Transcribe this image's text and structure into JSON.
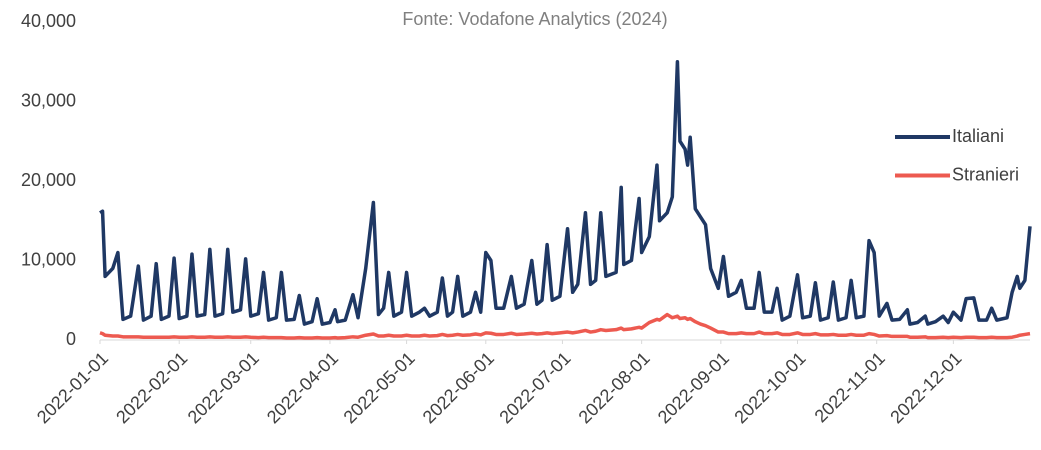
{
  "chart_data": {
    "type": "line",
    "title": "Fonte: Vodafone Analytics (2024)",
    "x": [
      "2022-01-01",
      "2022-01-02",
      "2022-01-03",
      "2022-01-06",
      "2022-01-08",
      "2022-01-10",
      "2022-01-13",
      "2022-01-16",
      "2022-01-18",
      "2022-01-21",
      "2022-01-23",
      "2022-01-25",
      "2022-01-28",
      "2022-01-30",
      "2022-02-01",
      "2022-02-04",
      "2022-02-06",
      "2022-02-08",
      "2022-02-11",
      "2022-02-13",
      "2022-02-15",
      "2022-02-18",
      "2022-02-20",
      "2022-02-22",
      "2022-02-25",
      "2022-02-27",
      "2022-03-01",
      "2022-03-04",
      "2022-03-06",
      "2022-03-08",
      "2022-03-11",
      "2022-03-13",
      "2022-03-15",
      "2022-03-18",
      "2022-03-20",
      "2022-03-22",
      "2022-03-25",
      "2022-03-27",
      "2022-03-29",
      "2022-04-01",
      "2022-04-03",
      "2022-04-04",
      "2022-04-07",
      "2022-04-10",
      "2022-04-12",
      "2022-04-15",
      "2022-04-18",
      "2022-04-20",
      "2022-04-22",
      "2022-04-24",
      "2022-04-26",
      "2022-04-29",
      "2022-05-01",
      "2022-05-03",
      "2022-05-06",
      "2022-05-08",
      "2022-05-10",
      "2022-05-13",
      "2022-05-15",
      "2022-05-17",
      "2022-05-19",
      "2022-05-21",
      "2022-05-23",
      "2022-05-26",
      "2022-05-28",
      "2022-05-30",
      "2022-06-01",
      "2022-06-03",
      "2022-06-05",
      "2022-06-08",
      "2022-06-11",
      "2022-06-13",
      "2022-06-16",
      "2022-06-19",
      "2022-06-21",
      "2022-06-23",
      "2022-06-25",
      "2022-06-27",
      "2022-06-30",
      "2022-07-03",
      "2022-07-05",
      "2022-07-07",
      "2022-07-10",
      "2022-07-12",
      "2022-07-14",
      "2022-07-16",
      "2022-07-18",
      "2022-07-22",
      "2022-07-24",
      "2022-07-25",
      "2022-07-28",
      "2022-07-31",
      "2022-08-01",
      "2022-08-04",
      "2022-08-07",
      "2022-08-08",
      "2022-08-11",
      "2022-08-13",
      "2022-08-15",
      "2022-08-16",
      "2022-08-18",
      "2022-08-19",
      "2022-08-20",
      "2022-08-22",
      "2022-08-24",
      "2022-08-26",
      "2022-08-28",
      "2022-08-31",
      "2022-09-02",
      "2022-09-04",
      "2022-09-07",
      "2022-09-09",
      "2022-09-11",
      "2022-09-14",
      "2022-09-16",
      "2022-09-18",
      "2022-09-21",
      "2022-09-23",
      "2022-09-25",
      "2022-09-28",
      "2022-10-01",
      "2022-10-03",
      "2022-10-06",
      "2022-10-08",
      "2022-10-10",
      "2022-10-13",
      "2022-10-15",
      "2022-10-17",
      "2022-10-20",
      "2022-10-22",
      "2022-10-24",
      "2022-10-27",
      "2022-10-29",
      "2022-10-31",
      "2022-11-02",
      "2022-11-05",
      "2022-11-07",
      "2022-11-10",
      "2022-11-13",
      "2022-11-14",
      "2022-11-17",
      "2022-11-20",
      "2022-11-21",
      "2022-11-24",
      "2022-11-27",
      "2022-11-29",
      "2022-12-01",
      "2022-12-04",
      "2022-12-06",
      "2022-12-09",
      "2022-12-11",
      "2022-12-14",
      "2022-12-16",
      "2022-12-18",
      "2022-12-22",
      "2022-12-24",
      "2022-12-26",
      "2022-12-27",
      "2022-12-29",
      "2022-12-31"
    ],
    "series": [
      {
        "name": "Italiani",
        "color": "#1f3864",
        "values": [
          16000,
          16200,
          8000,
          9000,
          11000,
          2600,
          3000,
          9300,
          2500,
          3000,
          9600,
          2600,
          3000,
          10300,
          2700,
          3000,
          10800,
          3000,
          3200,
          11400,
          3000,
          3300,
          11400,
          3500,
          3800,
          10200,
          3000,
          3300,
          8500,
          2500,
          2800,
          8500,
          2500,
          2600,
          5600,
          2000,
          2300,
          5200,
          2000,
          2200,
          3800,
          2300,
          2500,
          5700,
          2800,
          9000,
          17300,
          3200,
          4000,
          8500,
          3000,
          3500,
          8500,
          3000,
          3500,
          4000,
          3000,
          3500,
          7800,
          3000,
          3500,
          8000,
          3000,
          3500,
          6000,
          3500,
          11000,
          10000,
          4000,
          4000,
          8000,
          4000,
          4500,
          10000,
          4500,
          5000,
          12000,
          5000,
          5500,
          14000,
          6000,
          7000,
          16000,
          7000,
          7500,
          16000,
          8000,
          8500,
          19200,
          9500,
          10000,
          17800,
          11000,
          13000,
          22000,
          15000,
          16000,
          18000,
          35000,
          25000,
          24000,
          22000,
          25500,
          16500,
          15500,
          14500,
          9000,
          6500,
          10500,
          5500,
          6000,
          7500,
          4000,
          4000,
          8500,
          3500,
          3500,
          6500,
          2500,
          3000,
          8200,
          2800,
          3000,
          7200,
          2500,
          2800,
          7300,
          2500,
          2800,
          7500,
          2800,
          3000,
          12500,
          11000,
          3000,
          4600,
          2500,
          2600,
          3800,
          2000,
          2200,
          3000,
          2000,
          2300,
          3000,
          2200,
          3500,
          2500,
          5200,
          5300,
          2500,
          2500,
          4000,
          2500,
          2800,
          6000,
          8000,
          6500,
          7500,
          14300
        ]
      },
      {
        "name": "Stranieri",
        "color": "#ed5a50",
        "values": [
          900,
          800,
          600,
          500,
          500,
          400,
          400,
          400,
          350,
          350,
          350,
          350,
          350,
          400,
          350,
          350,
          400,
          350,
          350,
          400,
          350,
          350,
          400,
          350,
          350,
          400,
          350,
          300,
          350,
          300,
          300,
          300,
          250,
          250,
          300,
          250,
          250,
          300,
          250,
          250,
          300,
          250,
          300,
          400,
          350,
          600,
          750,
          500,
          500,
          600,
          500,
          500,
          600,
          500,
          500,
          600,
          500,
          550,
          700,
          550,
          600,
          700,
          600,
          650,
          750,
          650,
          900,
          850,
          700,
          700,
          850,
          700,
          750,
          850,
          750,
          800,
          900,
          800,
          900,
          1000,
          900,
          1000,
          1200,
          1000,
          1100,
          1300,
          1200,
          1300,
          1500,
          1300,
          1400,
          1600,
          1500,
          2200,
          2600,
          2500,
          3200,
          2800,
          3000,
          2700,
          2800,
          2600,
          2700,
          2300,
          2000,
          1800,
          1500,
          1000,
          1000,
          800,
          800,
          900,
          800,
          800,
          1000,
          800,
          800,
          900,
          700,
          700,
          900,
          700,
          700,
          800,
          650,
          650,
          700,
          600,
          600,
          700,
          600,
          600,
          800,
          700,
          500,
          550,
          450,
          450,
          450,
          350,
          350,
          400,
          300,
          300,
          350,
          300,
          350,
          300,
          350,
          350,
          300,
          300,
          350,
          300,
          300,
          350,
          500,
          600,
          700,
          800
        ]
      }
    ],
    "xlim": [
      "2022-01-01",
      "2022-12-31"
    ],
    "xticks": [
      "2022-01-01",
      "2022-02-01",
      "2022-03-01",
      "2022-04-01",
      "2022-05-01",
      "2022-06-01",
      "2022-07-01",
      "2022-08-01",
      "2022-09-01",
      "2022-10-01",
      "2022-11-01",
      "2022-12-01"
    ],
    "ylim": [
      0,
      40000
    ],
    "yticks": [
      0,
      {
        "value": 10000,
        "label": "10,000"
      },
      {
        "value": 20000,
        "label": "20,000"
      },
      {
        "value": 30000,
        "label": "30,000"
      },
      {
        "value": 40000,
        "label": "40,000"
      }
    ],
    "grid": false,
    "legend": "right"
  }
}
